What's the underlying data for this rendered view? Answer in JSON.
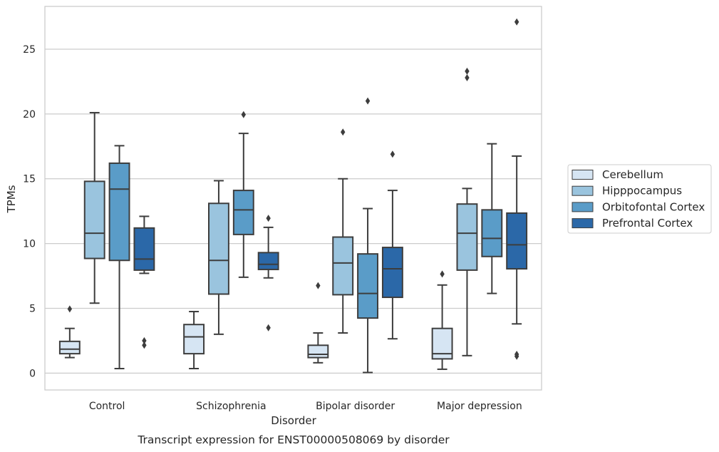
{
  "chart_data": {
    "type": "box",
    "title": "",
    "caption": "Transcript expression for ENST00000508069 by disorder",
    "xlabel": "Disorder",
    "ylabel": "TPMs",
    "ylim": [
      -1.3,
      28.3
    ],
    "yticks": [
      0,
      5,
      10,
      15,
      20,
      25
    ],
    "grid": "horizontal",
    "legend_position": "right",
    "categories": [
      "Control",
      "Schizophrenia",
      "Bipolar disorder",
      "Major depression"
    ],
    "series": [
      {
        "name": "Cerebellum",
        "color": "#d6e5f3",
        "boxes": [
          {
            "whislo": 1.2,
            "q1": 1.5,
            "med": 1.85,
            "q3": 2.45,
            "whishi": 3.45,
            "fliers": [
              4.95
            ]
          },
          {
            "whislo": 0.35,
            "q1": 1.5,
            "med": 2.8,
            "q3": 3.75,
            "whishi": 4.75,
            "fliers": []
          },
          {
            "whislo": 0.8,
            "q1": 1.2,
            "med": 1.45,
            "q3": 2.15,
            "whishi": 3.1,
            "fliers": [
              6.75
            ]
          },
          {
            "whislo": 0.3,
            "q1": 1.1,
            "med": 1.5,
            "q3": 3.45,
            "whishi": 6.8,
            "fliers": [
              7.65
            ]
          }
        ]
      },
      {
        "name": "Hipppocampus",
        "color": "#9ac4de",
        "boxes": [
          {
            "whislo": 5.4,
            "q1": 8.85,
            "med": 10.8,
            "q3": 14.8,
            "whishi": 20.1,
            "fliers": []
          },
          {
            "whislo": 3.0,
            "q1": 6.1,
            "med": 8.7,
            "q3": 13.1,
            "whishi": 14.85,
            "fliers": []
          },
          {
            "whislo": 3.1,
            "q1": 6.05,
            "med": 8.5,
            "q3": 10.5,
            "whishi": 15.0,
            "fliers": [
              18.6
            ]
          },
          {
            "whislo": 1.35,
            "q1": 7.95,
            "med": 10.8,
            "q3": 13.05,
            "whishi": 14.25,
            "fliers": [
              22.8,
              23.3
            ]
          }
        ]
      },
      {
        "name": "Orbitofontal Cortex",
        "color": "#5a9cc8",
        "boxes": [
          {
            "whislo": 0.35,
            "q1": 8.7,
            "med": 14.2,
            "q3": 16.2,
            "whishi": 17.55,
            "fliers": []
          },
          {
            "whislo": 7.4,
            "q1": 10.7,
            "med": 12.6,
            "q3": 14.1,
            "whishi": 18.5,
            "fliers": [
              19.95
            ]
          },
          {
            "whislo": 0.05,
            "q1": 4.25,
            "med": 6.15,
            "q3": 9.2,
            "whishi": 12.7,
            "fliers": [
              21.0
            ]
          },
          {
            "whislo": 6.15,
            "q1": 9.0,
            "med": 10.4,
            "q3": 12.6,
            "whishi": 17.7,
            "fliers": []
          }
        ]
      },
      {
        "name": "Prefrontal Cortex",
        "color": "#2b68a8",
        "boxes": [
          {
            "whislo": 7.7,
            "q1": 7.95,
            "med": 8.8,
            "q3": 11.2,
            "whishi": 12.1,
            "fliers": [
              2.15,
              2.5
            ]
          },
          {
            "whislo": 7.35,
            "q1": 8.0,
            "med": 8.4,
            "q3": 9.3,
            "whishi": 11.25,
            "fliers": [
              3.5,
              11.95
            ]
          },
          {
            "whislo": 2.65,
            "q1": 5.85,
            "med": 8.05,
            "q3": 9.7,
            "whishi": 14.1,
            "fliers": [
              16.9
            ]
          },
          {
            "whislo": 3.8,
            "q1": 8.05,
            "med": 9.9,
            "q3": 12.35,
            "whishi": 16.75,
            "fliers": [
              1.3,
              1.45,
              27.1
            ]
          }
        ]
      }
    ]
  }
}
